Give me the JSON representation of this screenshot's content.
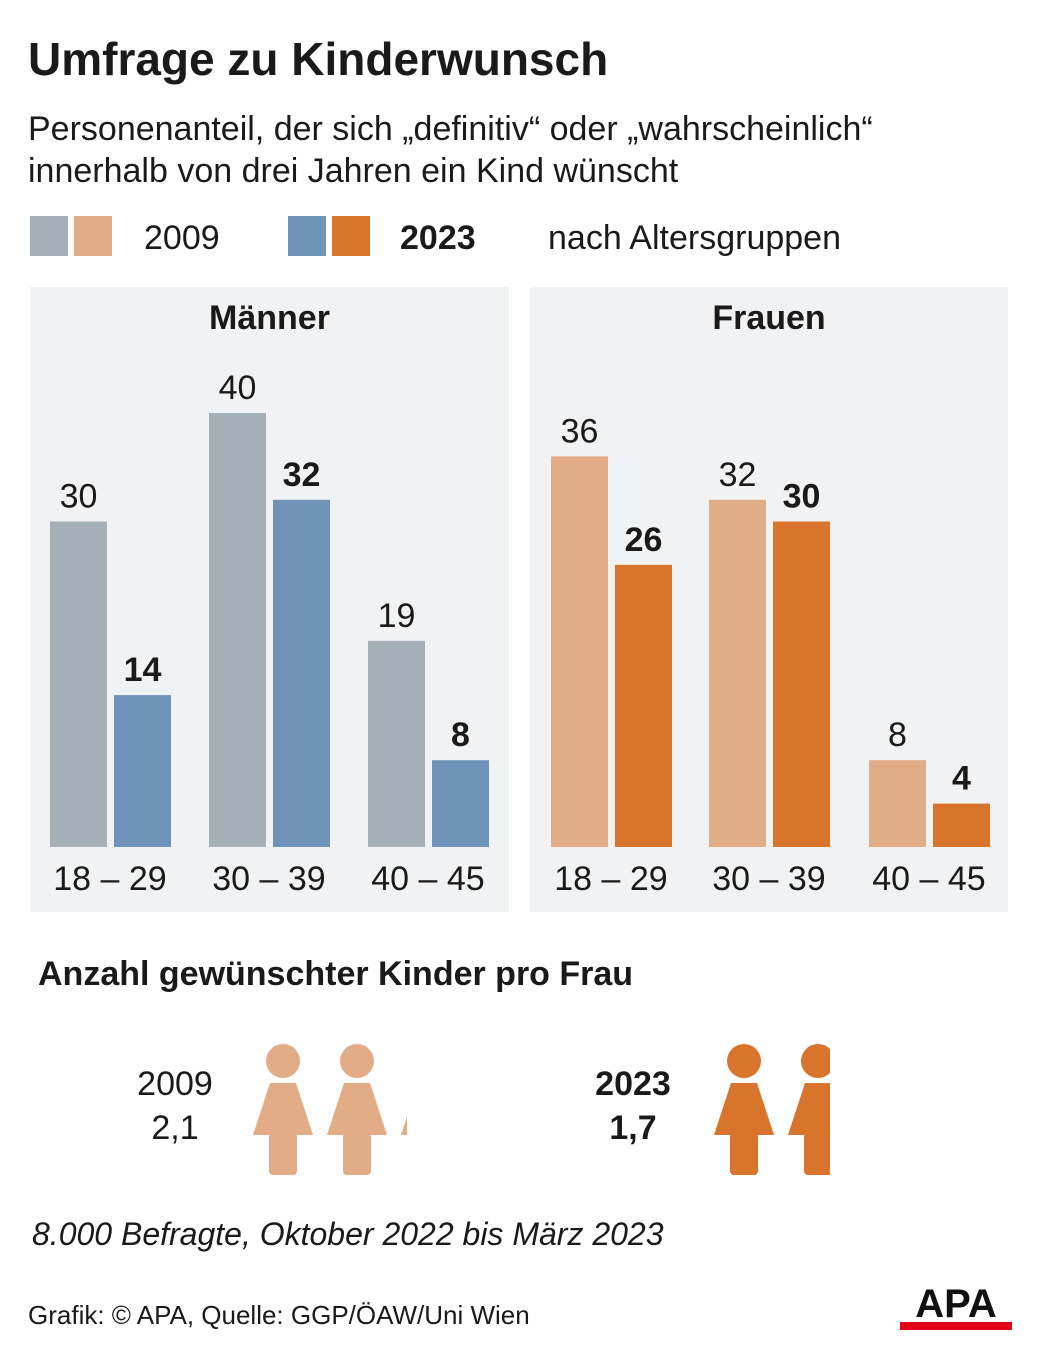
{
  "header": {
    "title": "Umfrage zu Kinderwunsch",
    "subtitle_line1": "Personenanteil, der sich „definitiv“ oder „wahrscheinlich“",
    "subtitle_line2": "innerhalb von drei Jahren ein Kind wünscht"
  },
  "legend": {
    "year1": "2009",
    "year2": "2023",
    "note": "nach Altersgruppen",
    "colors": {
      "men_2009": "#a3b0b8",
      "women_2009": "#e2ad86",
      "men_2023": "#6f93b9",
      "women_2023": "#d8742c"
    }
  },
  "chart_data": [
    {
      "type": "bar",
      "title": "Männer",
      "categories": [
        "18 – 29",
        "30 – 39",
        "40 – 45"
      ],
      "series": [
        {
          "name": "2009",
          "values": [
            30,
            40,
            19
          ],
          "color": "#a3b0b8"
        },
        {
          "name": "2023",
          "values": [
            14,
            32,
            8
          ],
          "color": "#6f93b9"
        }
      ],
      "ylim": [
        0,
        40
      ],
      "grid": false
    },
    {
      "type": "bar",
      "title": "Frauen",
      "categories": [
        "18 – 29",
        "30 – 39",
        "40 – 45"
      ],
      "series": [
        {
          "name": "2009",
          "values": [
            36,
            32,
            8
          ],
          "color": "#e2ad86"
        },
        {
          "name": "2023",
          "values": [
            26,
            30,
            4
          ],
          "color": "#d8742c"
        }
      ],
      "ylim": [
        0,
        40
      ],
      "grid": false
    }
  ],
  "children": {
    "title": "Anzahl gewünschter Kinder pro Frau",
    "icon": "woman-figure-icon",
    "items": [
      {
        "year": "2009",
        "value": "2,1",
        "count": 2.1,
        "color": "#e2ad86"
      },
      {
        "year": "2023",
        "value": "1,7",
        "count": 1.7,
        "color": "#d8742c"
      }
    ]
  },
  "footer": {
    "note": "8.000 Befragte, Oktober 2022 bis März 2023",
    "source": "Grafik: © APA, Quelle: GGP/ÖAW/Uni Wien",
    "logo": "APA"
  }
}
